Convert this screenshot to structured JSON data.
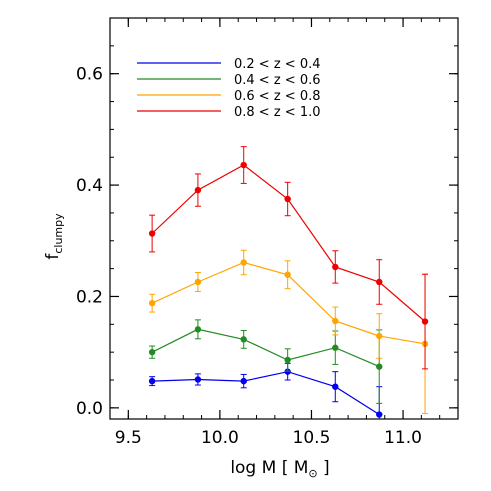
{
  "chart_data": {
    "type": "line",
    "title": "",
    "xlabel": {
      "main": "log M [ M",
      "sub": "⊙",
      "close": " ]"
    },
    "ylabel": {
      "main": "f",
      "sub": "clumpy"
    },
    "xlim": [
      9.4,
      11.3
    ],
    "ylim": [
      -0.02,
      0.7
    ],
    "xticks": [
      9.5,
      10.0,
      10.5,
      11.0
    ],
    "xtick_labels": [
      "9.5",
      "10.0",
      "10.5",
      "11.0"
    ],
    "yticks": [
      0.0,
      0.2,
      0.4,
      0.6
    ],
    "ytick_labels": [
      "0.0",
      "0.2",
      "0.4",
      "0.6"
    ],
    "x_minor_step": 0.1,
    "y_minor_step": 0.05,
    "grid": false,
    "legend_position": "top-left",
    "series": [
      {
        "name": "0.2 < z < 0.4",
        "color": "#0000ee",
        "x": [
          9.63,
          9.88,
          10.13,
          10.37,
          10.63,
          10.87
        ],
        "y": [
          0.048,
          0.051,
          0.048,
          0.065,
          0.038,
          -0.012
        ],
        "err": [
          0.008,
          0.01,
          0.012,
          0.015,
          0.027,
          0.05
        ]
      },
      {
        "name": "0.4 < z < 0.6",
        "color": "#228b22",
        "x": [
          9.63,
          9.88,
          10.13,
          10.37,
          10.63,
          10.87
        ],
        "y": [
          0.1,
          0.141,
          0.123,
          0.086,
          0.108,
          0.074
        ],
        "err": [
          0.011,
          0.017,
          0.016,
          0.02,
          0.03,
          0.066
        ]
      },
      {
        "name": "0.6 < z < 0.8",
        "color": "#ffa500",
        "x": [
          9.63,
          9.88,
          10.13,
          10.37,
          10.63,
          10.87,
          11.12
        ],
        "y": [
          0.188,
          0.226,
          0.261,
          0.239,
          0.156,
          0.129,
          0.115
        ],
        "err": [
          0.016,
          0.017,
          0.022,
          0.025,
          0.025,
          0.04,
          0.125
        ]
      },
      {
        "name": "0.8 < z < 1.0",
        "color": "#ee0000",
        "x": [
          9.63,
          9.88,
          10.13,
          10.37,
          10.63,
          10.87,
          11.12
        ],
        "y": [
          0.313,
          0.391,
          0.436,
          0.375,
          0.253,
          0.226,
          0.155
        ],
        "err": [
          0.033,
          0.029,
          0.033,
          0.03,
          0.029,
          0.04,
          0.085
        ]
      }
    ]
  }
}
